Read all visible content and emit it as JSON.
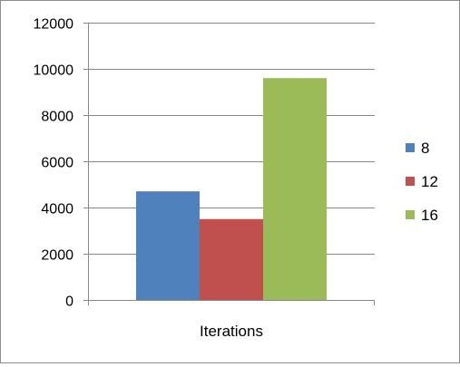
{
  "chart_data": {
    "type": "bar",
    "categories": [
      "Iterations"
    ],
    "series": [
      {
        "name": "8",
        "values": [
          4700
        ],
        "color": "#4F81BD"
      },
      {
        "name": "12",
        "values": [
          3500
        ],
        "color": "#C0504D"
      },
      {
        "name": "16",
        "values": [
          9600
        ],
        "color": "#9BBB59"
      }
    ],
    "ylim": [
      0,
      12000
    ],
    "yticks": [
      0,
      2000,
      4000,
      6000,
      8000,
      10000,
      12000
    ],
    "grid": true,
    "legend_position": "right"
  }
}
